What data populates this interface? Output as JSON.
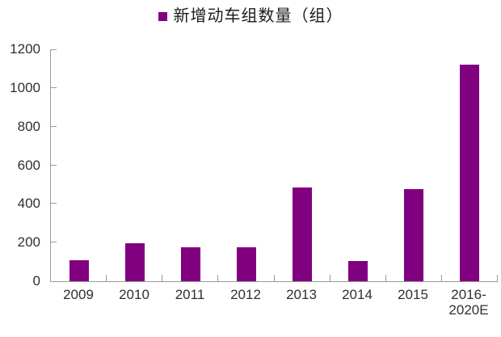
{
  "legend": {
    "label": "新增动车组数量（组）",
    "swatch_color": "#800080"
  },
  "chart_data": {
    "type": "bar",
    "title": "新增动车组数量（组）",
    "series_name": "新增动车组数量（组）",
    "categories": [
      "2009",
      "2010",
      "2011",
      "2012",
      "2013",
      "2014",
      "2015",
      "2016-\n2020E"
    ],
    "values": [
      110,
      195,
      175,
      175,
      485,
      105,
      475,
      1120
    ],
    "xlabel": "",
    "ylabel": "",
    "ylim": [
      0,
      1200
    ],
    "ytick_step": 200,
    "grid": false,
    "legend_position": "top-center",
    "bar_color": "#800080",
    "axis_color": "#9a9a9a",
    "label_color": "#303030"
  }
}
